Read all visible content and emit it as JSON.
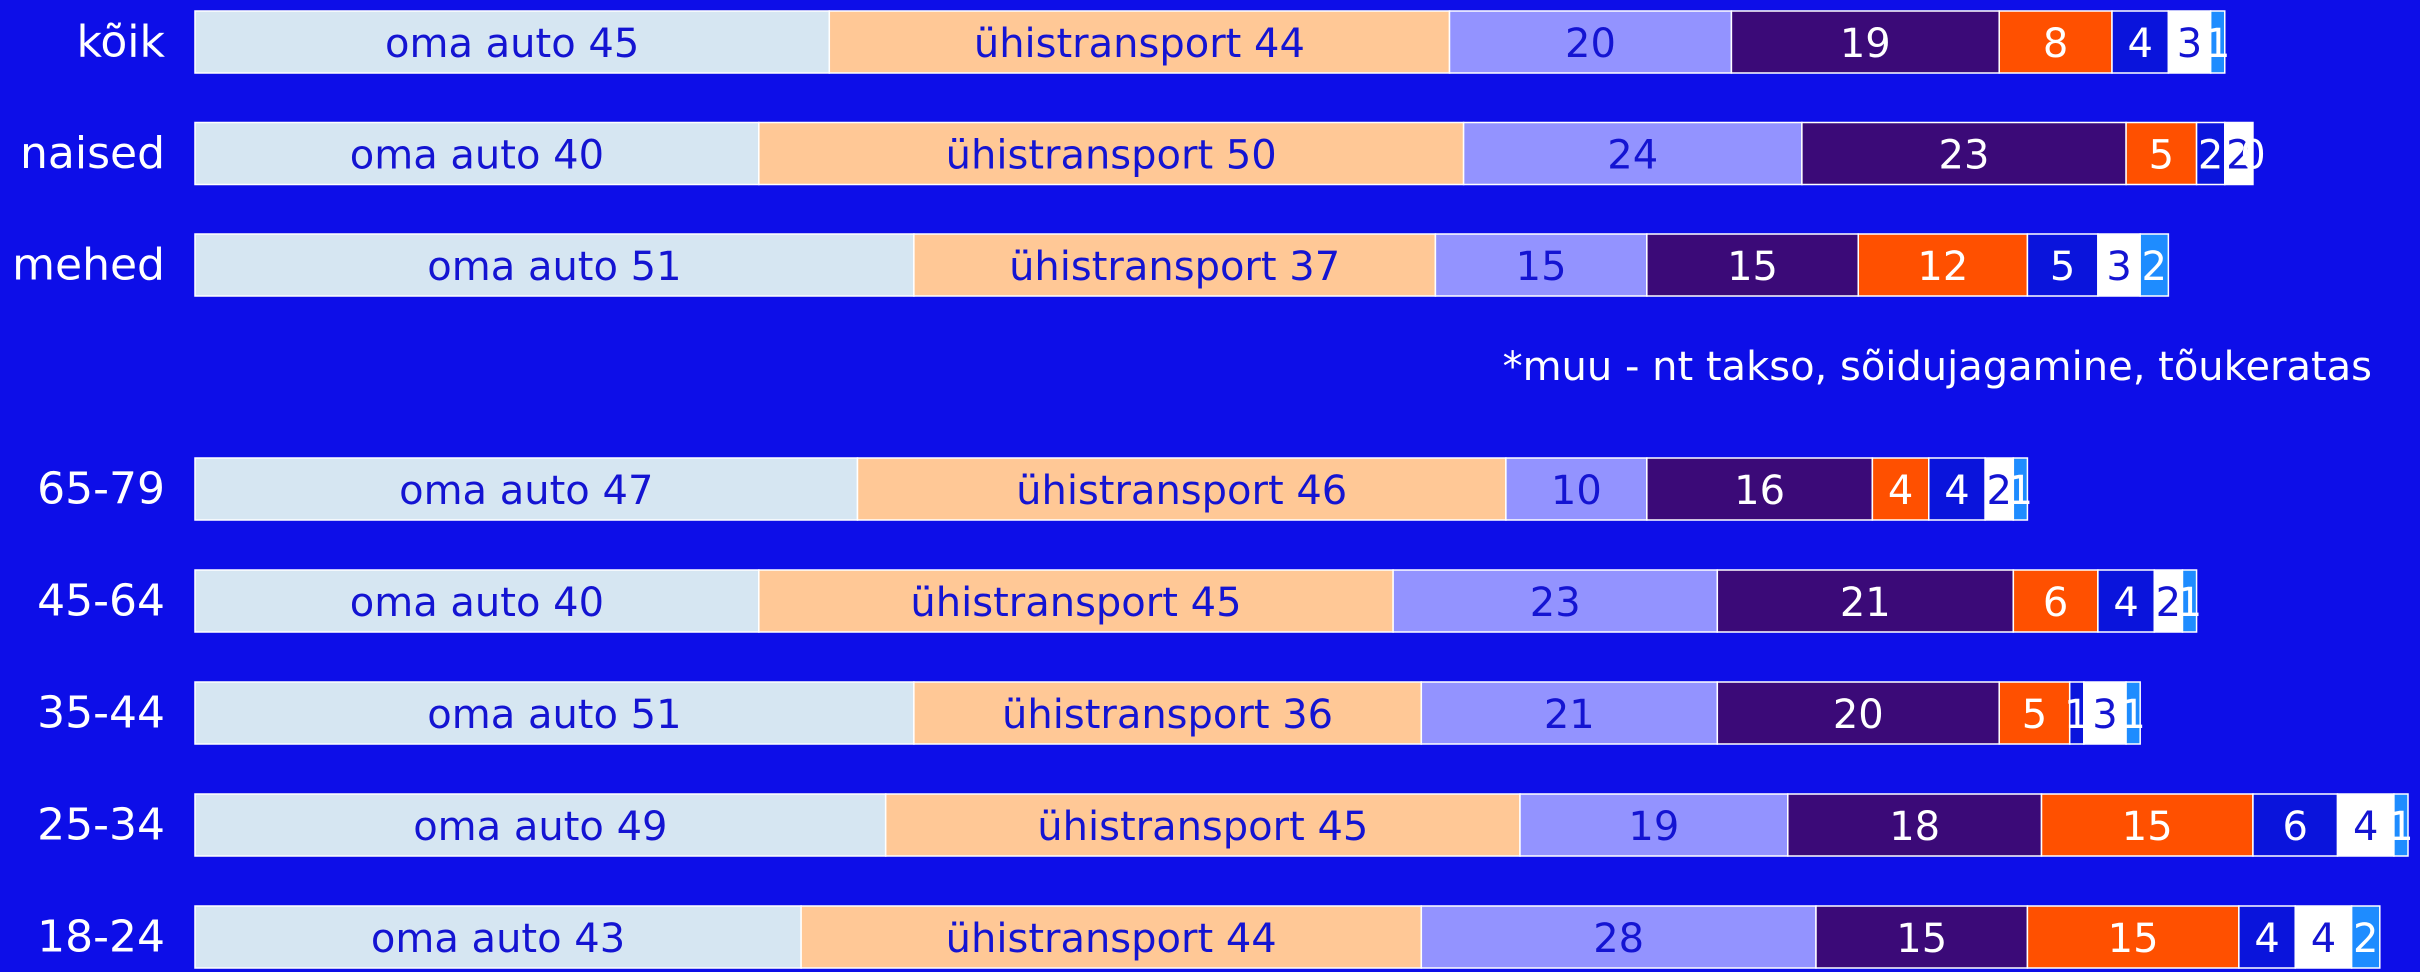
{
  "chart_data": {
    "type": "stacked-bar-horizontal",
    "categories": [
      "kõik",
      "naised",
      "mehed",
      "65-79",
      "45-64",
      "35-44",
      "25-34",
      "18-24"
    ],
    "note": "*muu - nt takso, sõidujagamine, tõukeratas",
    "series": [
      {
        "name": "oma auto",
        "color": "#d6e6f2",
        "values": [
          45,
          40,
          51,
          47,
          40,
          51,
          49,
          43
        ],
        "value_labels": [
          "oma auto 45",
          "oma auto 40",
          "oma auto 51",
          "oma auto 47",
          "oma auto 40",
          "oma auto 51",
          "oma auto 49",
          "oma auto 43"
        ]
      },
      {
        "name": "ühistransport",
        "color": "#ffc896",
        "values": [
          44,
          50,
          37,
          46,
          45,
          36,
          45,
          44
        ],
        "value_labels": [
          "ühistransport 44",
          "ühistransport 50",
          "ühistransport 37",
          "ühistransport 46",
          "ühistransport 45",
          "ühistransport 36",
          "ühistransport 45",
          "ühistransport 44"
        ]
      },
      {
        "color": "#9393ff",
        "values": [
          20,
          24,
          15,
          10,
          23,
          21,
          19,
          28
        ]
      },
      {
        "color": "#3b0a78",
        "values": [
          19,
          23,
          15,
          16,
          21,
          20,
          18,
          15
        ]
      },
      {
        "color": "#ff5000",
        "values": [
          8,
          5,
          12,
          4,
          6,
          5,
          15,
          15
        ]
      },
      {
        "color": "#0a14dc",
        "values": [
          4,
          2,
          5,
          4,
          4,
          1,
          6,
          4
        ]
      },
      {
        "color": "#ffffff",
        "values": [
          3,
          2,
          3,
          2,
          2,
          3,
          4,
          4
        ]
      },
      {
        "color": "#1e8cff",
        "values": [
          1,
          0,
          2,
          1,
          1,
          1,
          1,
          2
        ]
      }
    ]
  }
}
